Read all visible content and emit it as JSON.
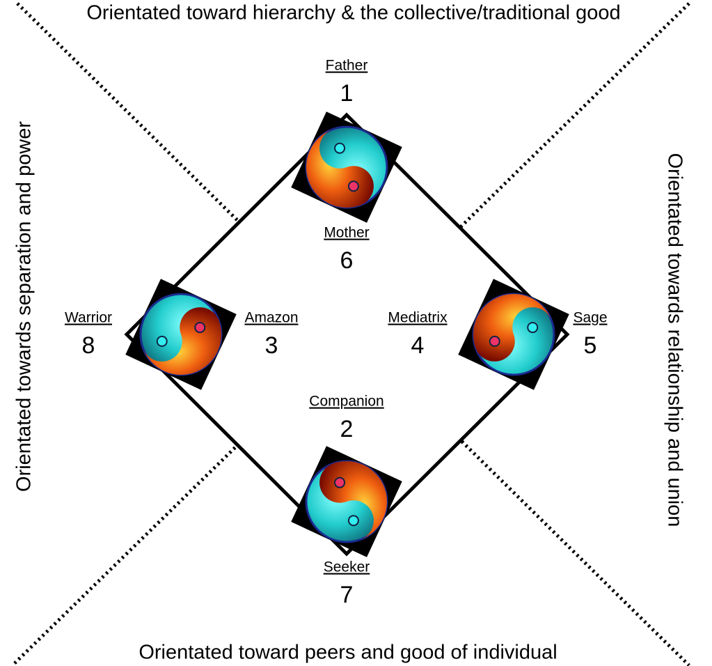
{
  "sides": {
    "top": "Orientated toward hierarchy & the collective/traditional good",
    "bottom": "Orientated toward peers and good of individual",
    "left": "Orientated towards separation and power",
    "right": "Orientated towards relationship and union"
  },
  "nodes": [
    {
      "label": "Father",
      "number": 1
    },
    {
      "label": "Mother",
      "number": 6
    },
    {
      "label": "Warrior",
      "number": 8
    },
    {
      "label": "Amazon",
      "number": 3
    },
    {
      "label": "Mediatrix",
      "number": 4
    },
    {
      "label": "Sage",
      "number": 5
    },
    {
      "label": "Companion",
      "number": 2
    },
    {
      "label": "Seeker",
      "number": 7
    }
  ]
}
